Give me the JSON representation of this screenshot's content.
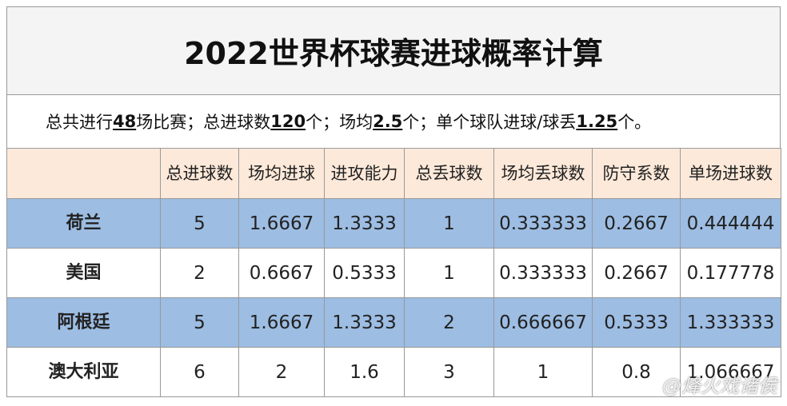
{
  "header": {
    "title": "2022世界杯球赛进球概率计算"
  },
  "summary": [
    "总共进行",
    "48",
    "场比赛；总进球数",
    "120",
    "个；场均",
    "2.5",
    "个；单个球队进球/球丢",
    "1.25",
    "个。"
  ],
  "table": {
    "columns": [
      "总进球数",
      "场均进球",
      "进攻能力",
      "总丢球数",
      "场均丢球数",
      "防守系数",
      "单场进球数"
    ],
    "rows": [
      [
        "荷兰",
        5,
        1.6667,
        1.3333,
        1,
        0.333333,
        0.2667,
        0.444444
      ],
      [
        "美国",
        2,
        0.6667,
        0.5333,
        1,
        0.333333,
        0.2667,
        0.177778
      ],
      [
        "阿根廷",
        5,
        1.6667,
        1.3333,
        2,
        0.666667,
        0.5333,
        1.333333
      ],
      [
        "澳大利亚",
        6,
        2,
        1.6,
        3,
        1,
        0.8,
        1.066667
      ]
    ]
  },
  "watermark": "@烽火戏诸侯"
}
